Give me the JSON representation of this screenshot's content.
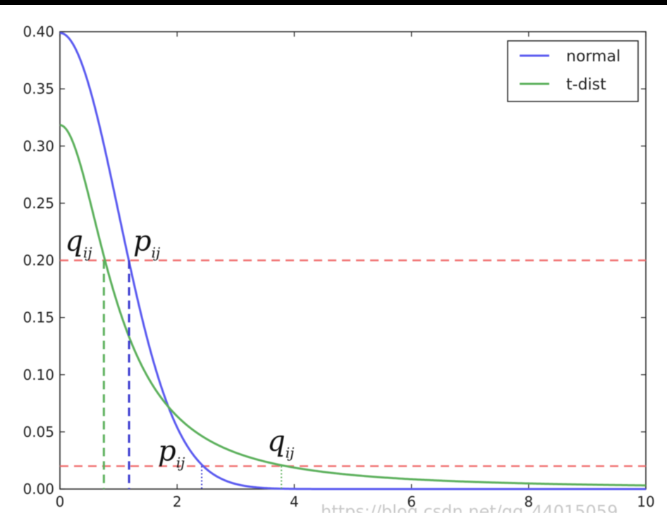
{
  "chart_data": {
    "type": "line",
    "title": "",
    "xlabel": "",
    "ylabel": "",
    "xlim": [
      0,
      10
    ],
    "ylim": [
      0,
      0.4
    ],
    "xticks": [
      "0",
      "2",
      "4",
      "6",
      "8",
      "10"
    ],
    "yticks": [
      "0.00",
      "0.05",
      "0.10",
      "0.15",
      "0.20",
      "0.25",
      "0.30",
      "0.35",
      "0.40"
    ],
    "legend_position": "top-right",
    "grid": false,
    "series": [
      {
        "name": "normal",
        "distribution": "standard normal pdf",
        "color": "#5a5af0"
      },
      {
        "name": "t-dist",
        "distribution": "Student t pdf, 1 degree of freedom (Cauchy)",
        "color": "#5cb05c"
      }
    ],
    "reference_lines": [
      {
        "y": 0.2,
        "color": "#f07070",
        "style": "dashed"
      },
      {
        "y": 0.02,
        "color": "#f07070",
        "style": "dashed"
      }
    ],
    "markers": [
      {
        "label_main": "q",
        "label_sub": "ij",
        "x": 0.75,
        "y": 0.2,
        "color": "#5cb05c",
        "style": "dashed"
      },
      {
        "label_main": "p",
        "label_sub": "ij",
        "x": 1.18,
        "y": 0.2,
        "color": "#3a3ad0",
        "style": "dashed"
      },
      {
        "label_main": "p",
        "label_sub": "ij",
        "x": 2.42,
        "y": 0.02,
        "color": "#3a3ad0",
        "style": "dotted"
      },
      {
        "label_main": "q",
        "label_sub": "ij",
        "x": 3.78,
        "y": 0.02,
        "color": "#5cb05c",
        "style": "dotted"
      }
    ],
    "watermark": "https://blog.csdn.net/qq_44015059"
  }
}
